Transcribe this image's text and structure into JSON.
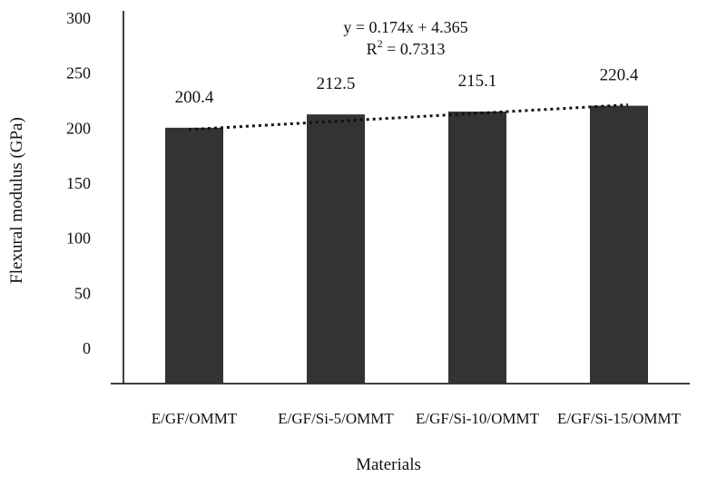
{
  "chart_data": {
    "type": "bar",
    "title": "",
    "xlabel": "Materials",
    "ylabel": "Flexural modulus (GPa)",
    "categories": [
      "E/GF/OMMT",
      "E/GF/Si-5/OMMT",
      "E/GF/Si-10/OMMT",
      "E/GF/Si-15/OMMT"
    ],
    "values": [
      200.4,
      212.5,
      215.1,
      220.4
    ],
    "data_labels": [
      "200.4",
      "212.5",
      "215.1",
      "220.4"
    ],
    "ylim": [
      0,
      300
    ],
    "yticks": [
      "0",
      "50",
      "100",
      "150",
      "200",
      "250",
      "300"
    ],
    "grid": false,
    "bar_color": "#333333",
    "trendline": {
      "style": "dotted",
      "equation": "y = 0.174x + 4.365",
      "r2_prefix": "R",
      "r2_sup": "2",
      "r2_value": " = 0.7313"
    }
  }
}
